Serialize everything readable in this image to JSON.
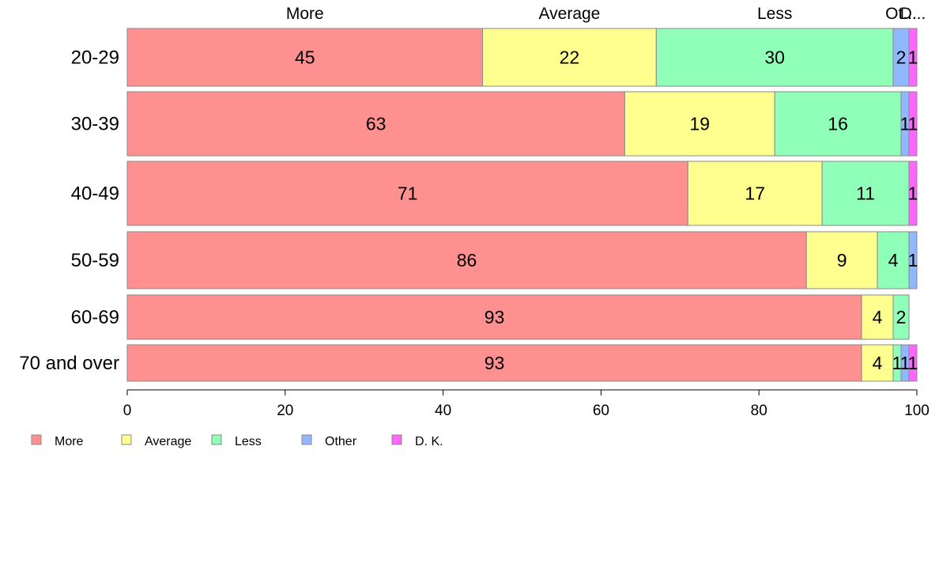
{
  "chart_data": {
    "type": "bar",
    "orientation": "horizontal",
    "stacked": true,
    "title": "",
    "xlabel": "",
    "ylabel": "",
    "xlim": [
      0,
      100
    ],
    "x_ticks": [
      0,
      20,
      40,
      60,
      80,
      100
    ],
    "categories": [
      "20-29",
      "30-39",
      "40-49",
      "50-59",
      "60-69",
      "70 and over"
    ],
    "top_labels": [
      "More",
      "Average",
      "Less",
      "Ot...",
      "D..."
    ],
    "series": [
      {
        "name": "More",
        "color": "#FF9090",
        "values": [
          45,
          63,
          71,
          86,
          93,
          93
        ]
      },
      {
        "name": "Average",
        "color": "#FFFF90",
        "values": [
          22,
          19,
          17,
          9,
          4,
          4
        ]
      },
      {
        "name": "Less",
        "color": "#90FFB8",
        "values": [
          30,
          16,
          11,
          4,
          2,
          1
        ]
      },
      {
        "name": "Other",
        "color": "#90B8FF",
        "values": [
          2,
          1,
          0,
          1,
          0,
          1
        ]
      },
      {
        "name": "D. K.",
        "color": "#FF66FF",
        "values": [
          1,
          1,
          1,
          0,
          0,
          1
        ]
      }
    ],
    "grid": false,
    "legend_position": "bottom-left"
  }
}
